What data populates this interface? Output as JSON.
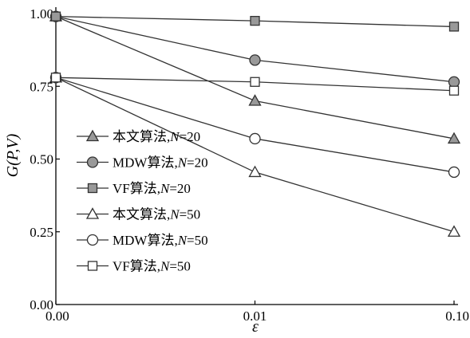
{
  "chart_data": {
    "type": "line",
    "x": [
      "0.00",
      "0.01",
      "0.10"
    ],
    "xlabel": "ε",
    "ylabel": "G(P,V)",
    "ylim": [
      0,
      1.0
    ],
    "yticks": [
      "0.00",
      "0.25",
      "0.50",
      "0.75",
      "1.00"
    ],
    "grid": false,
    "legend_position": "left",
    "series": [
      {
        "name": "本文算法,N=20",
        "prefix": "本文算法,",
        "var": "N",
        "suffix": "=20",
        "marker": "triangle",
        "filled": true,
        "values": [
          0.99,
          0.7,
          0.57
        ]
      },
      {
        "name": "MDW算法,N=20",
        "prefix": "MDW算法,",
        "var": "N",
        "suffix": "=20",
        "marker": "circle",
        "filled": true,
        "values": [
          0.99,
          0.84,
          0.765
        ]
      },
      {
        "name": "VF算法,N=20",
        "prefix": "VF算法,",
        "var": "N",
        "suffix": "=20",
        "marker": "square",
        "filled": true,
        "values": [
          0.99,
          0.975,
          0.955
        ]
      },
      {
        "name": "本文算法,N=50",
        "prefix": "本文算法,",
        "var": "N",
        "suffix": "=50",
        "marker": "triangle",
        "filled": false,
        "values": [
          0.78,
          0.455,
          0.25
        ]
      },
      {
        "name": "MDW算法,N=50",
        "prefix": "MDW算法,",
        "var": "N",
        "suffix": "=50",
        "marker": "circle",
        "filled": false,
        "values": [
          0.78,
          0.57,
          0.455
        ]
      },
      {
        "name": "VF算法,N=50",
        "prefix": "VF算法,",
        "var": "N",
        "suffix": "=50",
        "marker": "square",
        "filled": false,
        "values": [
          0.78,
          0.765,
          0.735
        ]
      }
    ],
    "colors": {
      "line": "#333333",
      "marker_fill": "#999999",
      "marker_stroke": "#333333",
      "axis": "#000000"
    }
  }
}
